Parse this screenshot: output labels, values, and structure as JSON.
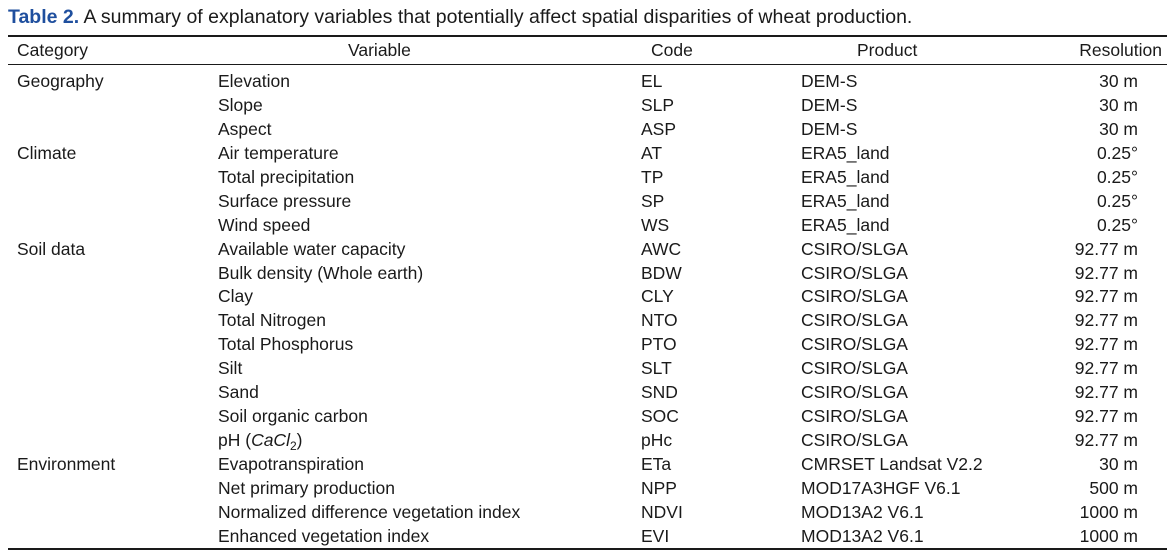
{
  "caption": {
    "label": "Table 2.",
    "text": " A summary of explanatory variables that potentially affect spatial disparities of wheat production."
  },
  "table": {
    "headers": {
      "category": "Category",
      "variable": "Variable",
      "code": "Code",
      "product": "Product",
      "resolution": "Resolution"
    },
    "rows": [
      {
        "category": "Geography",
        "variable": "Elevation",
        "code": "EL",
        "product": "DEM-S",
        "resolution": "30 m"
      },
      {
        "category": "",
        "variable": "Slope",
        "code": "SLP",
        "product": "DEM-S",
        "resolution": "30 m"
      },
      {
        "category": "",
        "variable": "Aspect",
        "code": "ASP",
        "product": "DEM-S",
        "resolution": "30 m"
      },
      {
        "category": "Climate",
        "variable": "Air temperature",
        "code": "AT",
        "product": "ERA5_land",
        "resolution": "0.25°"
      },
      {
        "category": "",
        "variable": "Total precipitation",
        "code": "TP",
        "product": "ERA5_land",
        "resolution": "0.25°"
      },
      {
        "category": "",
        "variable": "Surface pressure",
        "code": "SP",
        "product": "ERA5_land",
        "resolution": "0.25°"
      },
      {
        "category": "",
        "variable": "Wind speed",
        "code": "WS",
        "product": "ERA5_land",
        "resolution": "0.25°"
      },
      {
        "category": "Soil data",
        "variable": "Available water capacity",
        "code": "AWC",
        "product": "CSIRO/SLGA",
        "resolution": "92.77 m"
      },
      {
        "category": "",
        "variable": "Bulk density (Whole earth)",
        "code": "BDW",
        "product": "CSIRO/SLGA",
        "resolution": "92.77 m"
      },
      {
        "category": "",
        "variable": "Clay",
        "code": "CLY",
        "product": "CSIRO/SLGA",
        "resolution": "92.77 m"
      },
      {
        "category": "",
        "variable": "Total Nitrogen",
        "code": "NTO",
        "product": "CSIRO/SLGA",
        "resolution": "92.77 m"
      },
      {
        "category": "",
        "variable": "Total Phosphorus",
        "code": "PTO",
        "product": "CSIRO/SLGA",
        "resolution": "92.77 m"
      },
      {
        "category": "",
        "variable": "Silt",
        "code": "SLT",
        "product": "CSIRO/SLGA",
        "resolution": "92.77 m"
      },
      {
        "category": "",
        "variable": "Sand",
        "code": "SND",
        "product": "CSIRO/SLGA",
        "resolution": "92.77 m"
      },
      {
        "category": "",
        "variable": "Soil organic carbon",
        "code": "SOC",
        "product": "CSIRO/SLGA",
        "resolution": "92.77 m"
      },
      {
        "category": "",
        "variable_prefix": "pH (",
        "variable_formula": "CaCl",
        "variable_subscript": "2",
        "variable_suffix": ")",
        "code": "pHc",
        "product": "CSIRO/SLGA",
        "resolution": "92.77 m"
      },
      {
        "category": "Environment",
        "variable": "Evapotranspiration",
        "code": "ETa",
        "product": "CMRSET Landsat V2.2",
        "resolution": "30 m"
      },
      {
        "category": "",
        "variable": "Net primary production",
        "code": "NPP",
        "product": "MOD17A3HGF V6.1",
        "resolution": "500 m"
      },
      {
        "category": "",
        "variable": "Normalized difference vegetation index",
        "code": "NDVI",
        "product": "MOD13A2 V6.1",
        "resolution": "1000 m"
      },
      {
        "category": "",
        "variable": "Enhanced vegetation index",
        "code": "EVI",
        "product": "MOD13A2 V6.1",
        "resolution": "1000 m"
      }
    ]
  }
}
